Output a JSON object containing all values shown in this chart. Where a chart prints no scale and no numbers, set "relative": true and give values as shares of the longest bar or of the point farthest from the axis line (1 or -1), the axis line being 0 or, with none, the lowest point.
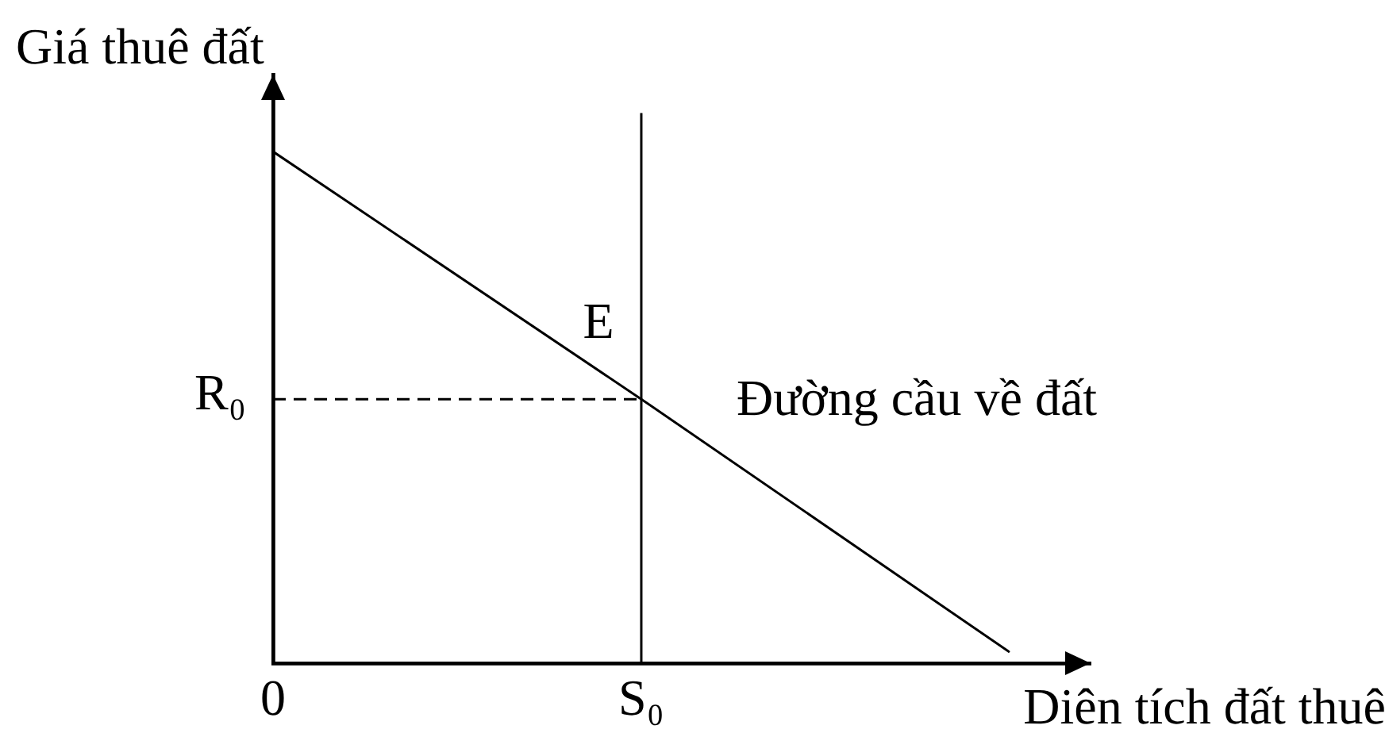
{
  "chart_data": {
    "type": "line",
    "relative": true,
    "ylabel": "Giá thuê đất",
    "xlabel": "Diên tích đất thuê",
    "categories": [
      "0",
      "S₀",
      null
    ],
    "annotations": [
      {
        "text": "E",
        "x": "S₀",
        "y": 0.48
      },
      {
        "text": "R₀",
        "x": "0",
        "y": 0.48
      }
    ],
    "series": [
      {
        "name": "Đường cầu về đất",
        "color": "#000000",
        "values": [
          0.93,
          0.48,
          0.02
        ]
      },
      {
        "color": "#000000",
        "x": [
          "S₀",
          "S₀"
        ],
        "values": [
          0,
          1
        ]
      },
      {
        "color": "#000000",
        "x": [
          "0",
          "S₀"
        ],
        "values": [
          0.48,
          0.48
        ],
        "line_style": "dashed"
      }
    ]
  }
}
